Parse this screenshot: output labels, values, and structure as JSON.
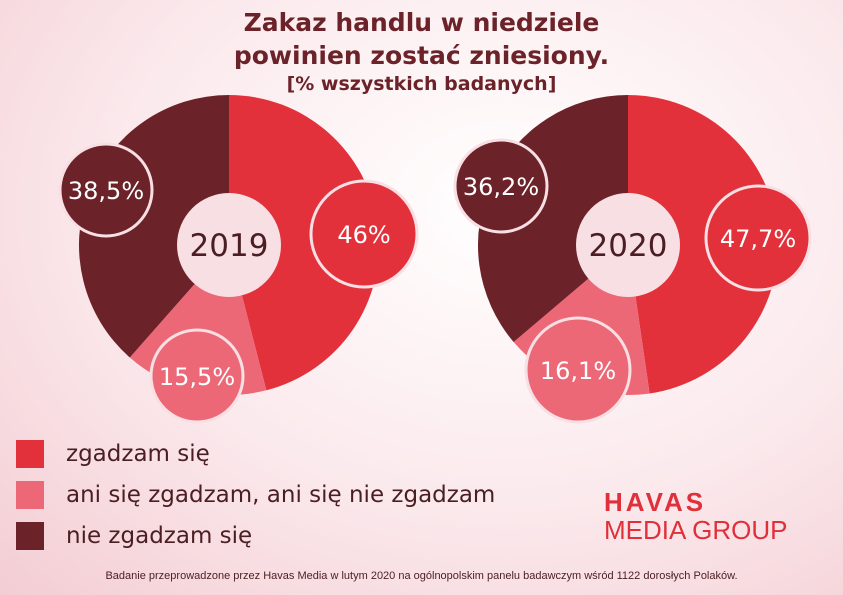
{
  "title_line1": "Zakaz handlu w niedziele",
  "title_line2": "powinien zostać zniesiony.",
  "subtitle": "[% wszystkich badanych]",
  "colors": {
    "agree": "#e3313c",
    "neutral": "#ec6877",
    "disagree": "#6b2228",
    "center": "#f8dfe3"
  },
  "chart_data": {
    "type": "pie",
    "title": "Zakaz handlu w niedziele powinien zostać zniesiony.",
    "subtitle": "[% wszystkich badanych]",
    "categories": [
      "zgadzam się",
      "ani się zgadzam, ani się nie zgadzam",
      "nie zgadzam się"
    ],
    "charts": [
      {
        "year": "2019",
        "values": [
          46,
          15.5,
          38.5
        ],
        "labels": [
          "46%",
          "15,5%",
          "38,5%"
        ]
      },
      {
        "year": "2020",
        "values": [
          47.7,
          16.1,
          36.2
        ],
        "labels": [
          "47,7%",
          "16,1%",
          "36,2%"
        ]
      }
    ]
  },
  "legend": [
    {
      "label": "zgadzam się",
      "color": "#e3313c"
    },
    {
      "label": "ani się zgadzam, ani się nie zgadzam",
      "color": "#ec6877"
    },
    {
      "label": "nie zgadzam się",
      "color": "#6b2228"
    }
  ],
  "logo": {
    "line1": "HAVAS",
    "line2": "MEDIA GROUP"
  },
  "footnote": "Badanie przeprowadzone przez Havas Media w lutym 2020 na ogólnopolskim panelu badawczym wśród 1122 dorosłych Polaków."
}
